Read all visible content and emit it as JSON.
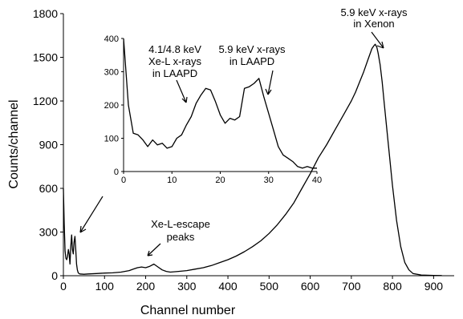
{
  "chart_data": [
    {
      "type": "line",
      "xlabel": "Channel number",
      "ylabel": "Counts/channel",
      "xlim": [
        0,
        950
      ],
      "ylim": [
        0,
        1800
      ],
      "xticks": [
        0,
        100,
        200,
        300,
        400,
        500,
        600,
        700,
        800,
        900
      ],
      "yticks": [
        0,
        300,
        600,
        900,
        1200,
        1500,
        1800
      ],
      "grid": false,
      "series": [
        {
          "x": [
            0,
            2,
            4,
            6,
            8,
            10,
            12,
            14,
            16,
            18,
            20,
            22,
            24,
            26,
            28,
            30,
            32,
            34,
            36,
            38,
            40,
            50,
            60,
            80,
            100,
            120,
            140,
            160,
            170,
            180,
            190,
            200,
            210,
            220,
            230,
            240,
            250,
            260,
            280,
            300,
            320,
            340,
            360,
            380,
            400,
            420,
            440,
            460,
            480,
            500,
            520,
            540,
            560,
            580,
            600,
            620,
            640,
            660,
            680,
            700,
            710,
            720,
            730,
            740,
            745,
            750,
            755,
            758,
            762,
            765,
            770,
            775,
            780,
            790,
            800,
            810,
            820,
            830,
            840,
            850,
            870,
            900,
            920
          ],
          "y": [
            600,
            360,
            170,
            120,
            110,
            130,
            180,
            150,
            80,
            200,
            280,
            180,
            150,
            230,
            270,
            180,
            80,
            40,
            20,
            15,
            12,
            10,
            12,
            15,
            18,
            20,
            25,
            35,
            45,
            55,
            60,
            55,
            65,
            80,
            60,
            40,
            30,
            25,
            30,
            35,
            45,
            55,
            70,
            90,
            110,
            135,
            165,
            200,
            240,
            290,
            350,
            420,
            500,
            600,
            700,
            810,
            900,
            1000,
            1100,
            1200,
            1260,
            1330,
            1400,
            1480,
            1520,
            1560,
            1580,
            1590,
            1570,
            1530,
            1450,
            1330,
            1180,
            900,
            620,
            380,
            200,
            90,
            40,
            15,
            5,
            2,
            1
          ]
        }
      ],
      "annotations": [
        {
          "text_lines": [
            "5.9 keV x-rays",
            "in Xenon"
          ]
        },
        {
          "text_lines": [
            "Xe-L-escape",
            "peaks"
          ]
        }
      ]
    },
    {
      "type": "line",
      "xlim": [
        0,
        40
      ],
      "ylim": [
        0,
        400
      ],
      "xticks": [
        0,
        10,
        20,
        30,
        40
      ],
      "yticks": [
        0,
        100,
        200,
        300,
        400
      ],
      "grid": false,
      "series": [
        {
          "x": [
            0,
            0.5,
            1,
            2,
            3,
            4,
            5,
            6,
            7,
            8,
            9,
            10,
            11,
            12,
            13,
            14,
            15,
            16,
            17,
            18,
            19,
            20,
            21,
            22,
            23,
            24,
            25,
            26,
            27,
            28,
            29,
            30,
            31,
            32,
            33,
            34,
            35,
            36,
            37,
            38,
            39,
            40
          ],
          "y": [
            400,
            300,
            200,
            115,
            110,
            95,
            75,
            95,
            80,
            85,
            70,
            75,
            100,
            110,
            140,
            165,
            205,
            230,
            250,
            245,
            210,
            170,
            145,
            160,
            155,
            165,
            250,
            255,
            265,
            280,
            225,
            175,
            125,
            75,
            50,
            40,
            30,
            15,
            10,
            15,
            10,
            10
          ]
        }
      ],
      "annotations": [
        {
          "text_lines": [
            "4.1/4.8 keV",
            "Xe-L x-rays",
            "in LAAPD"
          ]
        },
        {
          "text_lines": [
            "5.9 keV x-rays",
            "in LAAPD"
          ]
        }
      ]
    }
  ]
}
